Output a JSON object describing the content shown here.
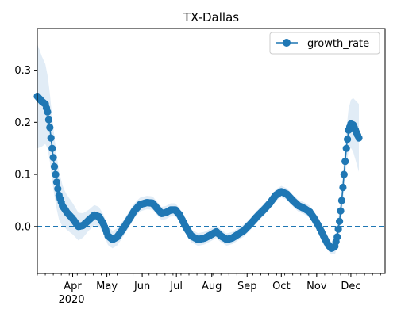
{
  "chart_data": {
    "type": "line",
    "title": "TX-Dallas",
    "xlabel": "",
    "ylabel": "",
    "x_range": [
      "2020-03-01",
      "2020-12-31"
    ],
    "ylim": [
      -0.09,
      0.38
    ],
    "y_ticks": [
      0.0,
      0.1,
      0.2,
      0.3
    ],
    "y_tick_labels": [
      "0.0",
      "0.1",
      "0.2",
      "0.3"
    ],
    "x_ticks": [
      {
        "date": "2020-04-01",
        "label": "Apr"
      },
      {
        "date": "2020-05-01",
        "label": "May"
      },
      {
        "date": "2020-06-01",
        "label": "Jun"
      },
      {
        "date": "2020-07-01",
        "label": "Jul"
      },
      {
        "date": "2020-08-01",
        "label": "Aug"
      },
      {
        "date": "2020-09-01",
        "label": "Sep"
      },
      {
        "date": "2020-10-01",
        "label": "Oct"
      },
      {
        "date": "2020-11-01",
        "label": "Nov"
      },
      {
        "date": "2020-12-01",
        "label": "Dec"
      }
    ],
    "year_label": "2020",
    "grid": false,
    "legend": {
      "position": "top-right",
      "entries": [
        "growth_rate"
      ]
    },
    "reference_line": {
      "y": 0.0,
      "style": "dashed"
    },
    "series": [
      {
        "name": "growth_rate",
        "color": "#1f77b4",
        "band_color": "#dce9f5",
        "anchors": [
          [
            "2020-03-01",
            0.25
          ],
          [
            "2020-03-05",
            0.24
          ],
          [
            "2020-03-08",
            0.235
          ],
          [
            "2020-03-10",
            0.22
          ],
          [
            "2020-03-12",
            0.19
          ],
          [
            "2020-03-14",
            0.15
          ],
          [
            "2020-03-16",
            0.115
          ],
          [
            "2020-03-18",
            0.085
          ],
          [
            "2020-03-20",
            0.06
          ],
          [
            "2020-03-23",
            0.04
          ],
          [
            "2020-03-27",
            0.027
          ],
          [
            "2020-04-01",
            0.015
          ],
          [
            "2020-04-06",
            0.0
          ],
          [
            "2020-04-10",
            0.002
          ],
          [
            "2020-04-15",
            0.012
          ],
          [
            "2020-04-20",
            0.022
          ],
          [
            "2020-04-24",
            0.019
          ],
          [
            "2020-04-28",
            0.005
          ],
          [
            "2020-05-02",
            -0.018
          ],
          [
            "2020-05-06",
            -0.025
          ],
          [
            "2020-05-10",
            -0.02
          ],
          [
            "2020-05-15",
            -0.005
          ],
          [
            "2020-05-20",
            0.012
          ],
          [
            "2020-05-25",
            0.03
          ],
          [
            "2020-05-30",
            0.042
          ],
          [
            "2020-06-05",
            0.046
          ],
          [
            "2020-06-10",
            0.045
          ],
          [
            "2020-06-14",
            0.035
          ],
          [
            "2020-06-18",
            0.025
          ],
          [
            "2020-06-22",
            0.027
          ],
          [
            "2020-06-26",
            0.032
          ],
          [
            "2020-06-30",
            0.032
          ],
          [
            "2020-07-04",
            0.022
          ],
          [
            "2020-07-09",
            0.0
          ],
          [
            "2020-07-14",
            -0.018
          ],
          [
            "2020-07-20",
            -0.025
          ],
          [
            "2020-07-26",
            -0.022
          ],
          [
            "2020-08-01",
            -0.015
          ],
          [
            "2020-08-05",
            -0.01
          ],
          [
            "2020-08-09",
            -0.018
          ],
          [
            "2020-08-14",
            -0.025
          ],
          [
            "2020-08-19",
            -0.022
          ],
          [
            "2020-08-24",
            -0.015
          ],
          [
            "2020-08-29",
            -0.008
          ],
          [
            "2020-09-04",
            0.005
          ],
          [
            "2020-09-10",
            0.02
          ],
          [
            "2020-09-16",
            0.033
          ],
          [
            "2020-09-21",
            0.045
          ],
          [
            "2020-09-26",
            0.06
          ],
          [
            "2020-10-01",
            0.067
          ],
          [
            "2020-10-06",
            0.062
          ],
          [
            "2020-10-11",
            0.05
          ],
          [
            "2020-10-16",
            0.04
          ],
          [
            "2020-10-21",
            0.035
          ],
          [
            "2020-10-26",
            0.028
          ],
          [
            "2020-10-30",
            0.015
          ],
          [
            "2020-11-03",
            0.0
          ],
          [
            "2020-11-07",
            -0.018
          ],
          [
            "2020-11-11",
            -0.035
          ],
          [
            "2020-11-14",
            -0.042
          ],
          [
            "2020-11-17",
            -0.038
          ],
          [
            "2020-11-19",
            -0.02
          ],
          [
            "2020-11-21",
            0.01
          ],
          [
            "2020-11-23",
            0.05
          ],
          [
            "2020-11-25",
            0.1
          ],
          [
            "2020-11-27",
            0.15
          ],
          [
            "2020-11-29",
            0.185
          ],
          [
            "2020-12-01",
            0.197
          ],
          [
            "2020-12-03",
            0.195
          ],
          [
            "2020-12-05",
            0.185
          ],
          [
            "2020-12-08",
            0.17
          ]
        ],
        "band_half_width": [
          [
            "2020-03-01",
            0.1
          ],
          [
            "2020-03-10",
            0.07
          ],
          [
            "2020-03-25",
            0.035
          ],
          [
            "2020-04-15",
            0.02
          ],
          [
            "2020-06-01",
            0.013
          ],
          [
            "2020-10-01",
            0.011
          ],
          [
            "2020-11-15",
            0.012
          ],
          [
            "2020-11-25",
            0.03
          ],
          [
            "2020-12-08",
            0.065
          ]
        ],
        "marker_step_days": 1
      }
    ]
  }
}
